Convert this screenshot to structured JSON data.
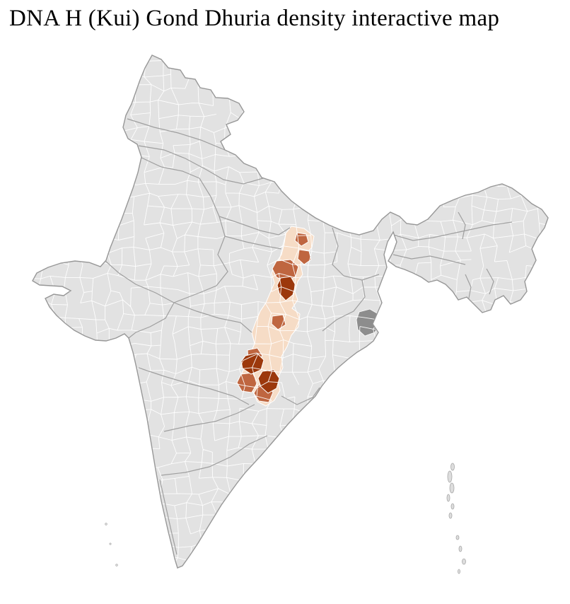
{
  "title": "DNA H (Kui) Gond Dhuria density interactive map",
  "map": {
    "region": "India",
    "unit": "districts",
    "colors": {
      "background": "#ffffff",
      "land": "#e2e2e2",
      "island": "#dddddd",
      "district_border": "#ffffff",
      "state_border": "#9b9b9b",
      "outline": "#979797",
      "metro_gray": "#8d8d8d",
      "density_low": "#f6dcc6",
      "density_mid": "#bf6640",
      "density_high": "#9c380c"
    },
    "density_scale": [
      {
        "level": "low",
        "color": "#f6dcc6"
      },
      {
        "level": "medium",
        "color": "#bf6640"
      },
      {
        "level": "high",
        "color": "#9c380c"
      }
    ]
  }
}
